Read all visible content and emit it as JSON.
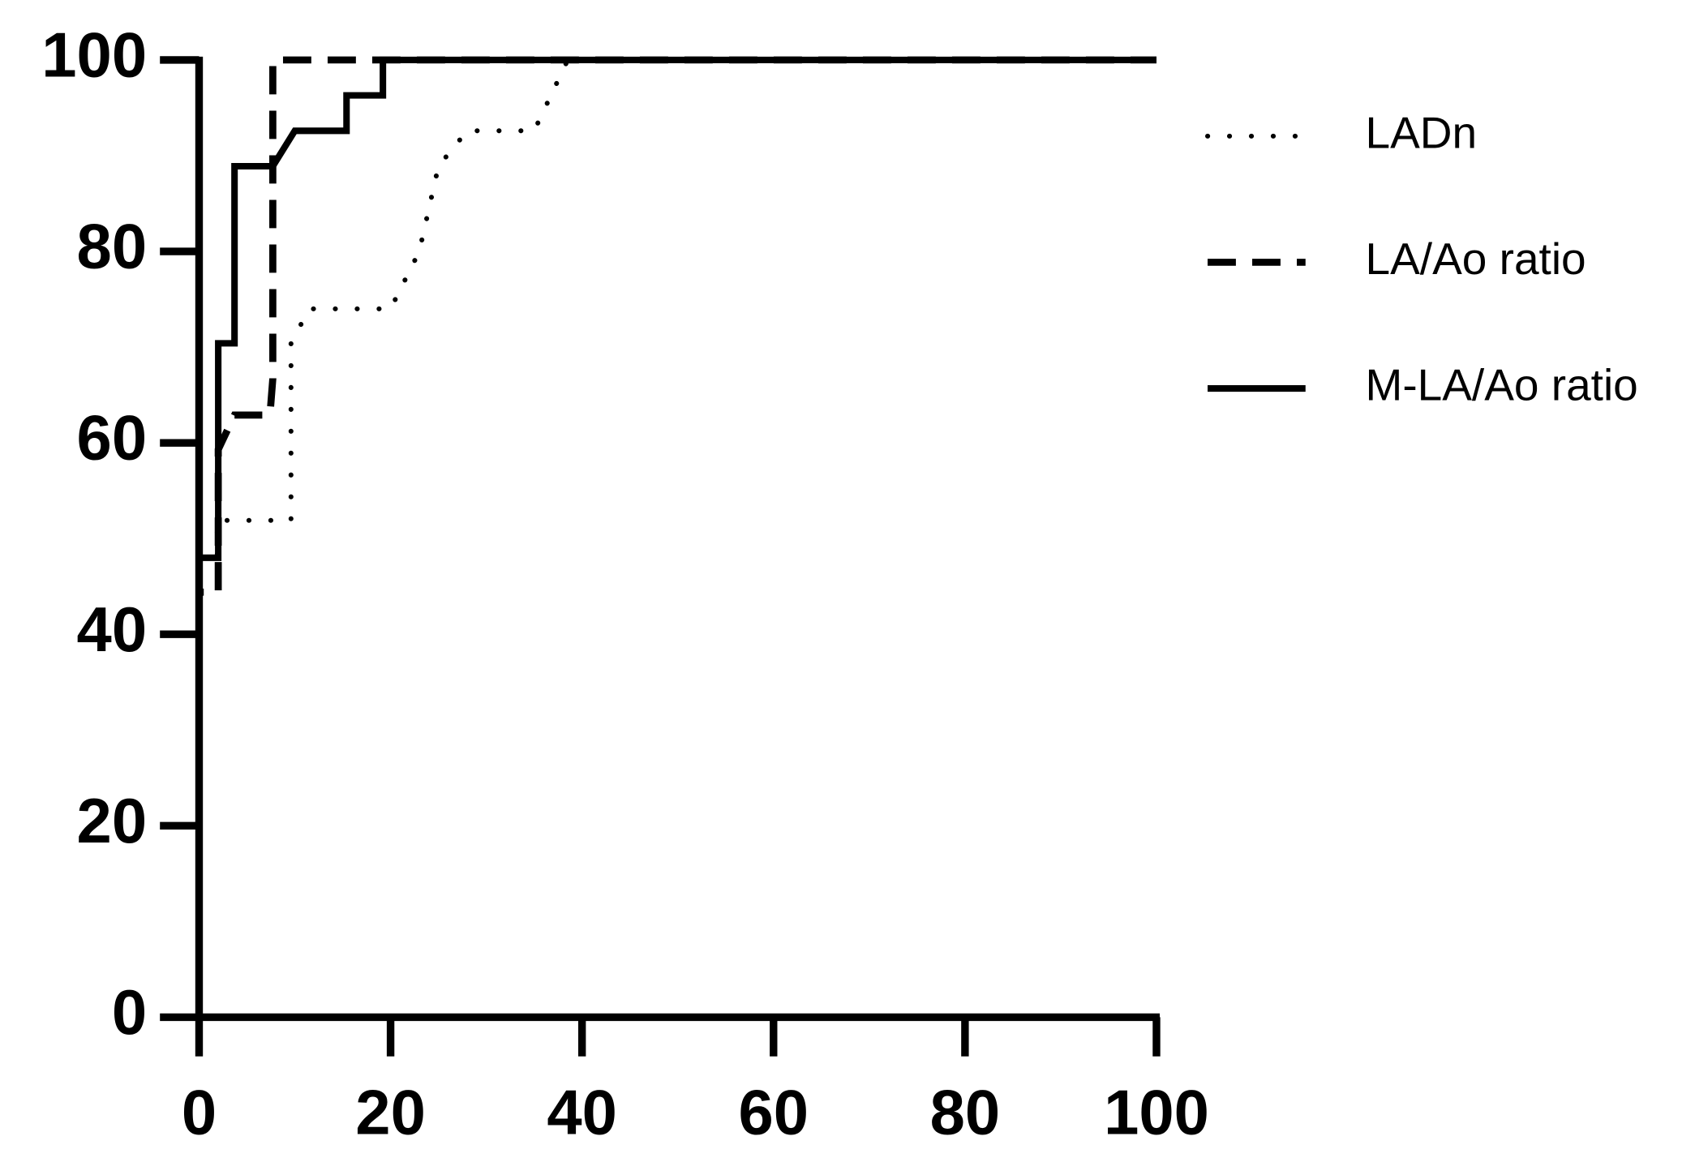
{
  "chart_data": {
    "type": "line",
    "xlim": [
      0,
      100
    ],
    "ylim": [
      0,
      100
    ],
    "xticks": [
      0,
      20,
      40,
      60,
      80,
      100
    ],
    "yticks": [
      0,
      20,
      40,
      60,
      80,
      100
    ],
    "legend": "right",
    "series": [
      {
        "name": "LADn",
        "color": "#000000",
        "line_style": "dotted",
        "x": [
          0,
          0,
          1.9,
          1.9,
          9.6,
          9.6,
          11.5,
          20,
          23,
          25,
          28,
          35,
          38.5,
          100
        ],
        "values": [
          0,
          48,
          48,
          51.9,
          51.9,
          70.4,
          74,
          74,
          80,
          88.9,
          92.6,
          92.6,
          100,
          100
        ]
      },
      {
        "name": "LA/Ao ratio",
        "color": "#000000",
        "line_style": "dashed",
        "x": [
          0,
          0,
          2,
          2,
          3.7,
          7.4,
          7.7,
          7.7,
          100
        ],
        "values": [
          0,
          44.4,
          44.4,
          59.3,
          62.9,
          62.9,
          66.7,
          100,
          100
        ]
      },
      {
        "name": "M-LA/Ao ratio",
        "color": "#000000",
        "line_style": "solid",
        "x": [
          0,
          0,
          2,
          2,
          3.7,
          3.7,
          7.7,
          10,
          15.4,
          15.4,
          19.2,
          19.2,
          100
        ],
        "values": [
          0,
          48,
          48,
          70.4,
          70.4,
          88.9,
          88.9,
          92.6,
          92.6,
          96.3,
          96.3,
          100,
          100
        ]
      }
    ]
  }
}
